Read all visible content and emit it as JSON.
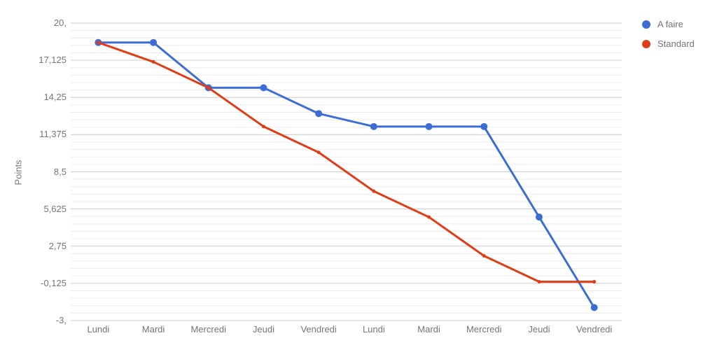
{
  "chart_data": {
    "type": "line",
    "title": "",
    "ylabel": "Points",
    "xlabel": "",
    "categories": [
      "Lundi",
      "Mardi",
      "Mercredi",
      "Jeudi",
      "Vendredi",
      "Lundi",
      "Mardi",
      "Mercredi",
      "Jeudi",
      "Vendredi"
    ],
    "series": [
      {
        "name": "A faire",
        "color": "#3C6DD5",
        "values": [
          18.5,
          18.5,
          15,
          15,
          13,
          12,
          12,
          12,
          5,
          -2
        ],
        "point_radius": 5,
        "line_width": 3
      },
      {
        "name": "Standard",
        "color": "#E03C15",
        "values": [
          18.5,
          17,
          15,
          12,
          10,
          7,
          5,
          2,
          0,
          0
        ],
        "point_radius": 2.5,
        "line_width": 3
      }
    ],
    "ylim": [
      -3,
      20
    ],
    "y_ticks": [
      {
        "value": 20,
        "label": "20,"
      },
      {
        "value": 17.125,
        "label": "17,125"
      },
      {
        "value": 14.25,
        "label": "14,25"
      },
      {
        "value": 11.375,
        "label": "11,375"
      },
      {
        "value": 8.5,
        "label": "8,5"
      },
      {
        "value": 5.625,
        "label": "5,625"
      },
      {
        "value": 2.75,
        "label": "2,75"
      },
      {
        "value": -0.125,
        "label": "-0,125"
      },
      {
        "value": -3,
        "label": "-3,"
      }
    ],
    "minor_tick_step": 0.575,
    "grid": true,
    "legend_position": "right",
    "colors": {
      "grid_major": "#cccccc",
      "grid_minor": "#ececec",
      "axis_text": "#757575",
      "background": "#ffffff"
    }
  }
}
